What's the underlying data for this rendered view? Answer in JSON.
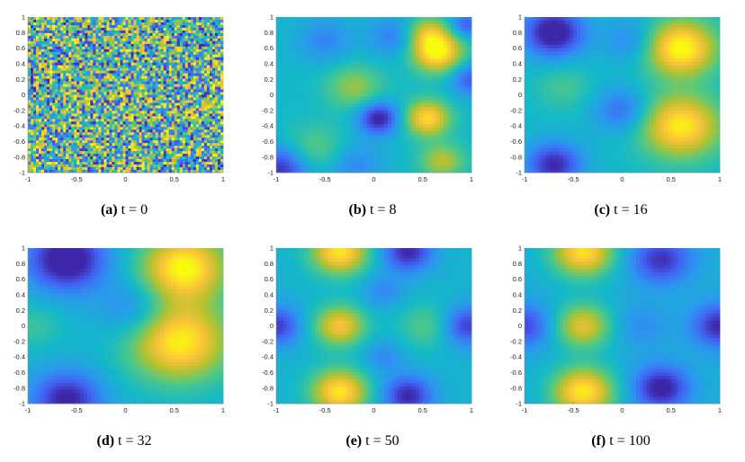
{
  "colors": {
    "colormap": [
      "#3e26a8",
      "#4262f5",
      "#2c96ef",
      "#14b9c8",
      "#52c883",
      "#b8c12e",
      "#fbc33a",
      "#f9fb0e"
    ]
  },
  "chart_data": [
    {
      "type": "heatmap",
      "label": "(a)",
      "caption": "t = 0",
      "pattern": "noise",
      "xlim": [
        -1,
        1
      ],
      "ylim": [
        -1,
        1
      ],
      "xticks": [
        "-1",
        "-0.5",
        "0",
        "0.5",
        "1"
      ],
      "yticks": [
        "1",
        "0.8",
        "0.6",
        "0.4",
        "0.2",
        "0",
        "-0.2",
        "-0.4",
        "-0.6",
        "-0.8",
        "-1"
      ],
      "blobs": []
    },
    {
      "type": "heatmap",
      "label": "(b)",
      "caption": "t = 8",
      "base": 0.42,
      "xlim": [
        -1,
        1
      ],
      "ylim": [
        -1,
        1
      ],
      "xticks": [
        "-1",
        "-0.5",
        "0",
        "0.5",
        "1"
      ],
      "yticks": [
        "1",
        "0.8",
        "0.6",
        "0.4",
        "0.2",
        "0",
        "-0.2",
        "-0.4",
        "-0.6",
        "-0.8",
        "-1"
      ],
      "blobs": [
        {
          "x": 0.65,
          "y": 0.55,
          "a": 0.58,
          "s": 0.18
        },
        {
          "x": 0.55,
          "y": 0.8,
          "a": 0.3,
          "s": 0.15
        },
        {
          "x": 0.55,
          "y": -0.3,
          "a": 0.5,
          "s": 0.16
        },
        {
          "x": 0.7,
          "y": -0.85,
          "a": 0.3,
          "s": 0.16
        },
        {
          "x": -0.2,
          "y": 0.1,
          "a": 0.25,
          "s": 0.2
        },
        {
          "x": -0.6,
          "y": -0.7,
          "a": 0.18,
          "s": 0.22
        },
        {
          "x": 0.05,
          "y": -0.3,
          "a": -0.45,
          "s": 0.15
        },
        {
          "x": -0.95,
          "y": -0.95,
          "a": -0.4,
          "s": 0.2
        },
        {
          "x": -0.5,
          "y": 0.7,
          "a": -0.18,
          "s": 0.2
        },
        {
          "x": 0.2,
          "y": 0.75,
          "a": -0.2,
          "s": 0.18
        },
        {
          "x": 1.0,
          "y": 0.2,
          "a": -0.3,
          "s": 0.15
        },
        {
          "x": 0.95,
          "y": 0.9,
          "a": -0.3,
          "s": 0.12
        },
        {
          "x": -0.2,
          "y": -0.9,
          "a": -0.18,
          "s": 0.2
        }
      ]
    },
    {
      "type": "heatmap",
      "label": "(c)",
      "caption": "t = 16",
      "base": 0.42,
      "xlim": [
        -1,
        1
      ],
      "ylim": [
        -1,
        1
      ],
      "xticks": [
        "-1",
        "-0.5",
        "0",
        "0.5",
        "1"
      ],
      "yticks": [
        "1",
        "0.8",
        "0.6",
        "0.4",
        "0.2",
        "0",
        "-0.2",
        "-0.4",
        "-0.6",
        "-0.8",
        "-1"
      ],
      "blobs": [
        {
          "x": 0.6,
          "y": 0.6,
          "a": 0.6,
          "s": 0.25
        },
        {
          "x": 0.6,
          "y": -0.4,
          "a": 0.55,
          "s": 0.28
        },
        {
          "x": -0.7,
          "y": 0.8,
          "a": -0.5,
          "s": 0.22
        },
        {
          "x": -0.7,
          "y": -0.9,
          "a": -0.42,
          "s": 0.2
        },
        {
          "x": 0.0,
          "y": -0.2,
          "a": -0.25,
          "s": 0.2
        },
        {
          "x": 0.1,
          "y": 0.7,
          "a": -0.18,
          "s": 0.2
        },
        {
          "x": -0.6,
          "y": 0.1,
          "a": 0.12,
          "s": 0.2
        }
      ]
    },
    {
      "type": "heatmap",
      "label": "(d)",
      "caption": "t = 32",
      "base": 0.4,
      "xlim": [
        -1,
        1
      ],
      "ylim": [
        -1,
        1
      ],
      "xticks": [
        "-1",
        "-0.5",
        "0",
        "0.5",
        "1"
      ],
      "yticks": [
        "1",
        "0.8",
        "0.6",
        "0.4",
        "0.2",
        "0",
        "-0.2",
        "-0.4",
        "-0.6",
        "-0.8",
        "-1"
      ],
      "blobs": [
        {
          "x": 0.6,
          "y": 0.75,
          "a": 0.6,
          "s": 0.3
        },
        {
          "x": 0.55,
          "y": -0.2,
          "a": 0.58,
          "s": 0.35
        },
        {
          "x": -0.6,
          "y": 0.85,
          "a": -0.5,
          "s": 0.28
        },
        {
          "x": -0.6,
          "y": -0.95,
          "a": -0.42,
          "s": 0.25
        },
        {
          "x": 0.1,
          "y": 0.2,
          "a": -0.2,
          "s": 0.25
        },
        {
          "x": -0.95,
          "y": 0.0,
          "a": 0.12,
          "s": 0.2
        }
      ]
    },
    {
      "type": "heatmap",
      "label": "(e)",
      "caption": "t = 50",
      "base": 0.4,
      "xlim": [
        -1,
        1
      ],
      "ylim": [
        -1,
        1
      ],
      "xticks": [
        "-1",
        "-0.5",
        "0",
        "0.5",
        "1"
      ],
      "yticks": [
        "1",
        "0.8",
        "0.6",
        "0.4",
        "0.2",
        "0",
        "-0.2",
        "-0.4",
        "-0.6",
        "-0.8",
        "-1"
      ],
      "blobs": [
        {
          "x": -0.35,
          "y": 0.95,
          "a": 0.55,
          "s": 0.2
        },
        {
          "x": -0.35,
          "y": 0.0,
          "a": 0.45,
          "s": 0.18
        },
        {
          "x": -0.35,
          "y": -0.85,
          "a": 0.55,
          "s": 0.2
        },
        {
          "x": 0.55,
          "y": 0.0,
          "a": 0.18,
          "s": 0.2
        },
        {
          "x": 0.35,
          "y": 0.95,
          "a": -0.4,
          "s": 0.18
        },
        {
          "x": 0.35,
          "y": -0.9,
          "a": -0.4,
          "s": 0.18
        },
        {
          "x": -1.0,
          "y": 0.0,
          "a": -0.35,
          "s": 0.18
        },
        {
          "x": 0.95,
          "y": 0.0,
          "a": -0.35,
          "s": 0.18
        },
        {
          "x": 0.1,
          "y": 0.45,
          "a": -0.15,
          "s": 0.15
        },
        {
          "x": 0.1,
          "y": -0.4,
          "a": -0.15,
          "s": 0.15
        }
      ]
    },
    {
      "type": "heatmap",
      "label": "(f)",
      "caption": "t = 100",
      "base": 0.38,
      "xlim": [
        -1,
        1
      ],
      "ylim": [
        -1,
        1
      ],
      "xticks": [
        "-1",
        "-0.5",
        "0",
        "0.5",
        "1"
      ],
      "yticks": [
        "1",
        "0.8",
        "0.6",
        "0.4",
        "0.2",
        "0",
        "-0.2",
        "-0.4",
        "-0.6",
        "-0.8",
        "-1"
      ],
      "blobs": [
        {
          "x": -0.4,
          "y": 0.95,
          "a": 0.55,
          "s": 0.22
        },
        {
          "x": -0.4,
          "y": 0.0,
          "a": 0.42,
          "s": 0.2
        },
        {
          "x": -0.4,
          "y": -0.85,
          "a": 0.58,
          "s": 0.22
        },
        {
          "x": 0.4,
          "y": 0.85,
          "a": -0.35,
          "s": 0.22
        },
        {
          "x": 0.4,
          "y": -0.8,
          "a": -0.42,
          "s": 0.2
        },
        {
          "x": 1.0,
          "y": 0.0,
          "a": -0.38,
          "s": 0.2
        },
        {
          "x": -1.0,
          "y": 0.0,
          "a": -0.3,
          "s": 0.2
        },
        {
          "x": 0.2,
          "y": 0.0,
          "a": -0.12,
          "s": 0.2
        }
      ]
    }
  ]
}
